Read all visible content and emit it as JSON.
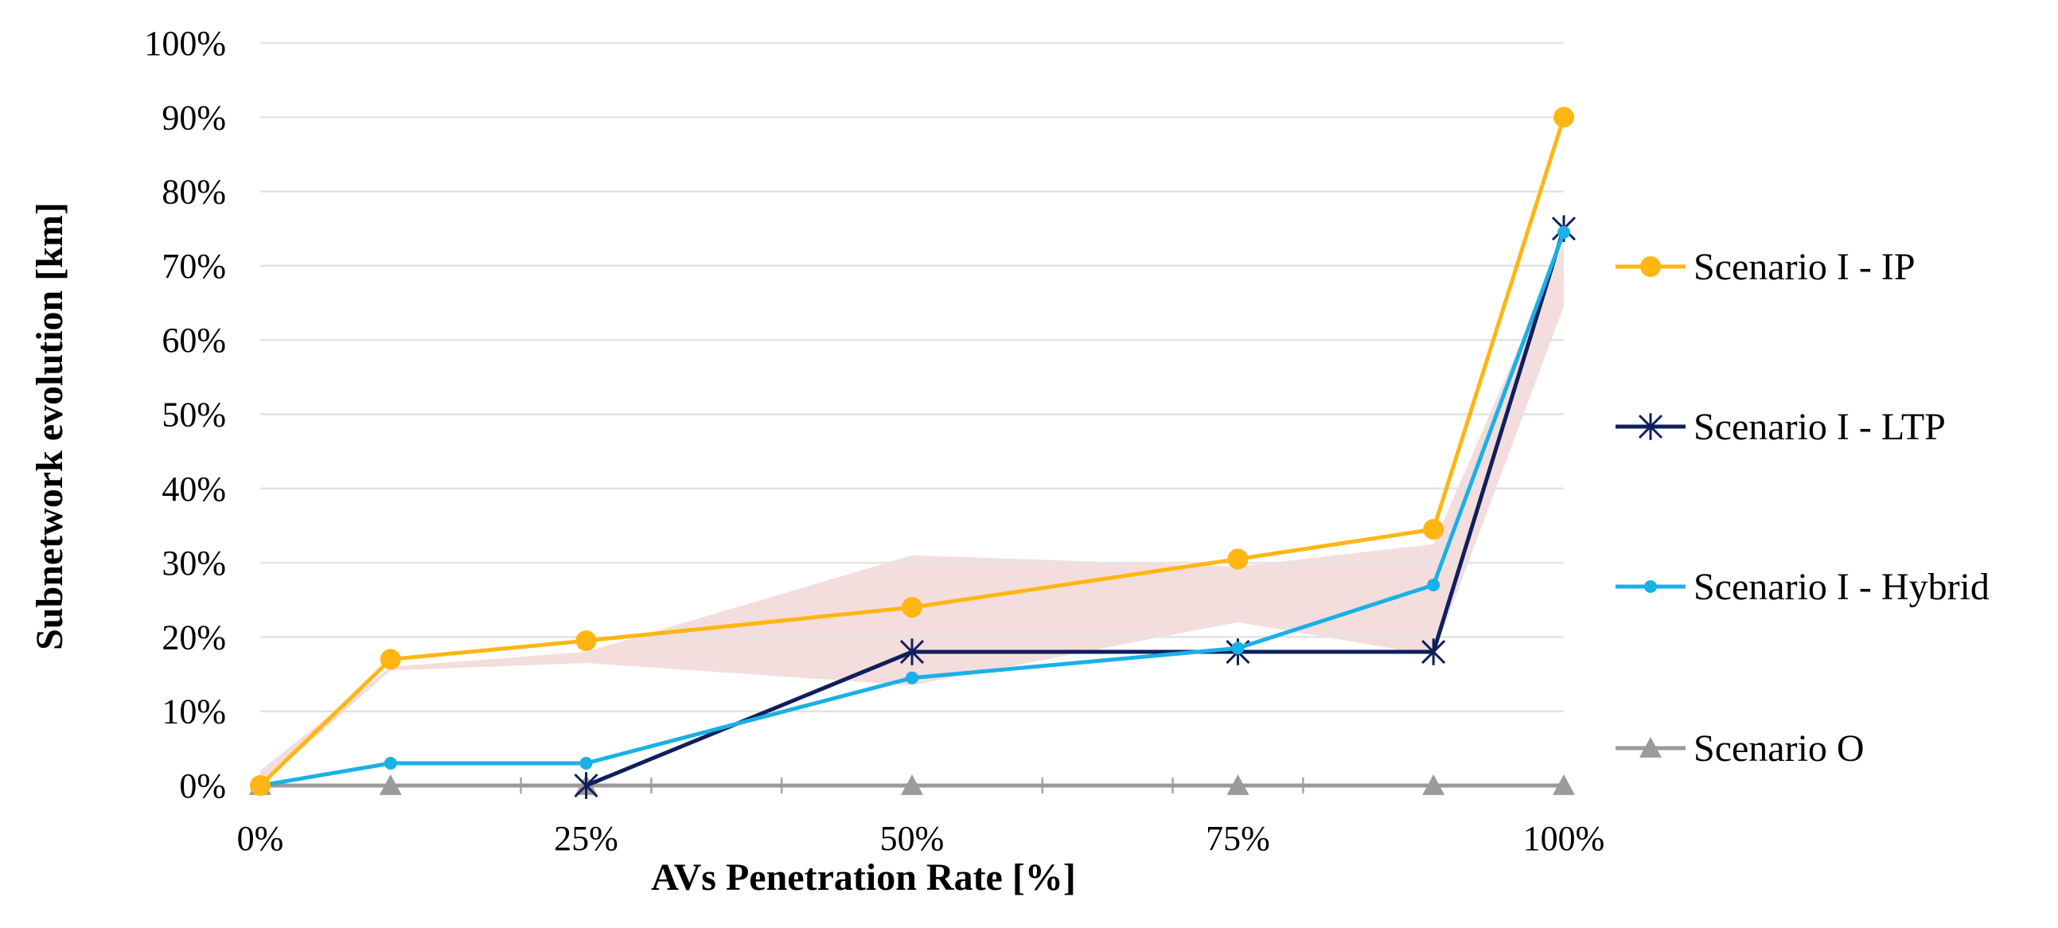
{
  "chart_data": {
    "type": "line",
    "title": "",
    "xlabel": "AVs Penetration Rate [%]",
    "ylabel": "Subnetwork evolution [km]",
    "x": [
      0,
      10,
      25,
      50,
      75,
      90,
      100
    ],
    "xlim": [
      0,
      100
    ],
    "ylim": [
      0,
      100
    ],
    "x_ticks": [
      0,
      25,
      50,
      75,
      100
    ],
    "x_tick_labels": [
      "0%",
      "25%",
      "50%",
      "75%",
      "100%"
    ],
    "y_ticks": [
      0,
      10,
      20,
      30,
      40,
      50,
      60,
      70,
      80,
      90,
      100
    ],
    "y_tick_labels": [
      "0%",
      "10%",
      "20%",
      "30%",
      "40%",
      "50%",
      "60%",
      "70%",
      "80%",
      "90%",
      "100%"
    ],
    "grid": "horizontal",
    "legend_position": "right",
    "series": [
      {
        "name": "Scenario I - IP",
        "color": "#FFB612",
        "marker": "circle",
        "x": [
          0,
          10,
          25,
          50,
          75,
          90,
          100
        ],
        "values": [
          0,
          17,
          19.5,
          24,
          30.5,
          34.5,
          90
        ]
      },
      {
        "name": "Scenario I - LTP",
        "color": "#0F1F5E",
        "marker": "asterisk",
        "x": [
          25,
          50,
          75,
          90,
          100
        ],
        "values": [
          0,
          18,
          18,
          18,
          75
        ]
      },
      {
        "name": "Scenario I - Hybrid",
        "color": "#1AB0E8",
        "marker": "dot",
        "x": [
          0,
          10,
          25,
          50,
          75,
          90,
          100
        ],
        "values": [
          0,
          3,
          3,
          14.5,
          18.5,
          27,
          74.5
        ]
      },
      {
        "name": "Scenario O",
        "color": "#9B9B9B",
        "marker": "triangle",
        "x": [
          0,
          10,
          25,
          50,
          75,
          90,
          100
        ],
        "values": [
          0,
          0,
          0,
          0,
          0,
          0,
          0
        ]
      }
    ],
    "shaded_band": {
      "color": "#E7B3B3",
      "upper": [
        [
          0,
          2
        ],
        [
          10,
          16
        ],
        [
          25,
          18
        ],
        [
          50,
          31
        ],
        [
          75,
          29.5
        ],
        [
          90,
          32.5
        ],
        [
          100,
          73
        ]
      ],
      "lower": [
        [
          0,
          0
        ],
        [
          10,
          15.5
        ],
        [
          25,
          16.5
        ],
        [
          50,
          13.5
        ],
        [
          75,
          22
        ],
        [
          90,
          17.5
        ],
        [
          100,
          64.5
        ]
      ]
    }
  }
}
